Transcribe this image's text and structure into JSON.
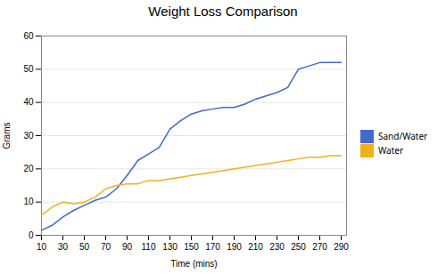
{
  "chart_data": {
    "type": "line",
    "title": "Weight Loss Comparison",
    "xlabel": "Time (mins)",
    "ylabel": "Grams",
    "x": [
      10,
      20,
      30,
      40,
      50,
      60,
      70,
      80,
      90,
      100,
      110,
      120,
      130,
      140,
      150,
      160,
      170,
      180,
      190,
      200,
      210,
      220,
      230,
      240,
      250,
      260,
      270,
      280,
      290
    ],
    "series": [
      {
        "name": "Sand/Water",
        "values": [
          1.5,
          3.0,
          5.5,
          7.5,
          9.0,
          10.5,
          11.5,
          14.0,
          18.0,
          22.5,
          24.5,
          26.5,
          32.0,
          34.5,
          36.5,
          37.5,
          38.0,
          38.5,
          38.5,
          39.5,
          41.0,
          42.0,
          43.0,
          44.5,
          50.0,
          51.0,
          52.0,
          52.0,
          52.0
        ]
      },
      {
        "name": "Water",
        "values": [
          6.0,
          8.5,
          10.0,
          9.5,
          10.0,
          11.5,
          14.0,
          15.0,
          15.5,
          15.5,
          16.5,
          16.5,
          17.0,
          17.5,
          18.0,
          18.5,
          19.0,
          19.5,
          20.0,
          20.5,
          21.0,
          21.5,
          22.0,
          22.5,
          23.0,
          23.5,
          23.5,
          24.0,
          24.0
        ]
      }
    ],
    "xlim": [
      10,
      295
    ],
    "ylim": [
      0,
      60
    ],
    "xticks": [
      10,
      30,
      50,
      70,
      90,
      110,
      130,
      150,
      170,
      190,
      210,
      230,
      250,
      270,
      290
    ],
    "yticks": [
      0,
      10,
      20,
      30,
      40,
      50,
      60
    ],
    "grid": true,
    "legend": "right"
  }
}
